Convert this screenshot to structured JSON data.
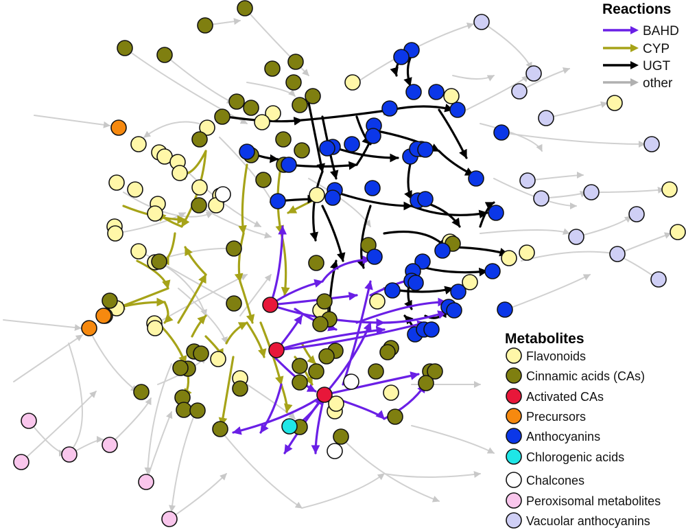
{
  "legend": {
    "reactions_title": "Reactions",
    "reactions": [
      {
        "label": "BAHD",
        "color": "#6a1fe6"
      },
      {
        "label": "CYP",
        "color": "#a6a318"
      },
      {
        "label": "UGT",
        "color": "#000000"
      },
      {
        "label": "other",
        "color": "#b0b0b0"
      }
    ],
    "metabolites_title": "Metabolites",
    "metabolites": [
      {
        "label": "Flavonoids",
        "color": "#fff7a8"
      },
      {
        "label": "Cinnamic acids (CAs)",
        "color": "#7f7f10"
      },
      {
        "label": "Activated CAs",
        "color": "#e8173a"
      },
      {
        "label": "Precursors",
        "color": "#f6890f"
      },
      {
        "label": "Anthocyanins",
        "color": "#0b37e8"
      },
      {
        "label": "Chlorogenic acids",
        "color": "#1fe6e6"
      },
      {
        "label": "Chalcones",
        "color": "#ffffff"
      },
      {
        "label": "Peroxisomal metabolites",
        "color": "#f9c6ec"
      },
      {
        "label": "Vacuolar anthocyanins",
        "color": "#cfcff5"
      }
    ]
  }
}
